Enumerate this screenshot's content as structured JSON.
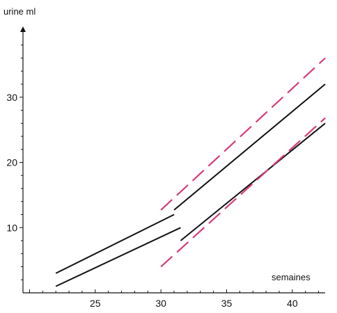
{
  "chart_data": {
    "type": "line",
    "title": "",
    "xlabel": "semaines",
    "ylabel": "urine ml",
    "xlim": [
      19.5,
      42.5
    ],
    "ylim": [
      0,
      40
    ],
    "x_ticks": [
      25,
      30,
      35,
      40
    ],
    "y_ticks": [
      10,
      20,
      30
    ],
    "grid": false,
    "legend": "none",
    "colors": {
      "solid": "#111111",
      "dashed": "#d63a7a"
    },
    "series": [
      {
        "style": "solid",
        "x": [
          22,
          31
        ],
        "y": [
          3,
          12
        ]
      },
      {
        "style": "solid",
        "x": [
          22,
          31.5
        ],
        "y": [
          1,
          10
        ]
      },
      {
        "style": "solid",
        "x": [
          31,
          42.5
        ],
        "y": [
          12.7,
          32
        ]
      },
      {
        "style": "solid",
        "x": [
          31.5,
          42.5
        ],
        "y": [
          8,
          26
        ]
      },
      {
        "style": "dashed",
        "x": [
          30,
          42.5
        ],
        "y": [
          12.7,
          36
        ]
      },
      {
        "style": "dashed",
        "x": [
          30,
          42.5
        ],
        "y": [
          4,
          26.8
        ]
      }
    ]
  }
}
